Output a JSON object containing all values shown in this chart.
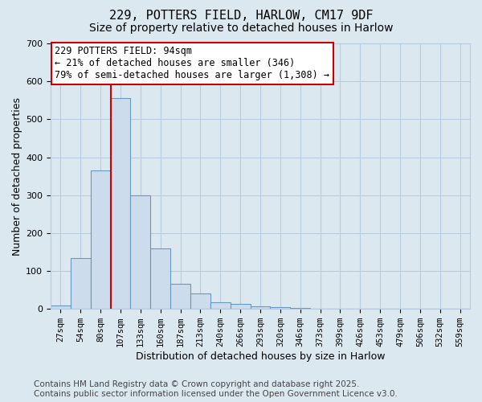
{
  "title": "229, POTTERS FIELD, HARLOW, CM17 9DF",
  "subtitle": "Size of property relative to detached houses in Harlow",
  "xlabel": "Distribution of detached houses by size in Harlow",
  "ylabel": "Number of detached properties",
  "bin_labels": [
    "27sqm",
    "54sqm",
    "80sqm",
    "107sqm",
    "133sqm",
    "160sqm",
    "187sqm",
    "213sqm",
    "240sqm",
    "266sqm",
    "293sqm",
    "320sqm",
    "346sqm",
    "373sqm",
    "399sqm",
    "426sqm",
    "453sqm",
    "479sqm",
    "506sqm",
    "532sqm",
    "559sqm"
  ],
  "bar_values": [
    8,
    135,
    365,
    555,
    300,
    160,
    67,
    40,
    18,
    14,
    7,
    5,
    2,
    1,
    0,
    0,
    0,
    0,
    0,
    0,
    0
  ],
  "bar_color": "#ccdcec",
  "bar_edge_color": "#6699bb",
  "property_line_x": 2.5,
  "property_line_color": "#cc0000",
  "annotation_text": "229 POTTERS FIELD: 94sqm\n← 21% of detached houses are smaller (346)\n79% of semi-detached houses are larger (1,308) →",
  "annotation_box_color": "#ffffff",
  "annotation_box_edge_color": "#cc0000",
  "ylim": [
    0,
    700
  ],
  "yticks": [
    0,
    100,
    200,
    300,
    400,
    500,
    600,
    700
  ],
  "grid_color": "#b8cce0",
  "background_color": "#dce8f0",
  "plot_background_color": "#dce8f0",
  "footnote": "Contains HM Land Registry data © Crown copyright and database right 2025.\nContains public sector information licensed under the Open Government Licence v3.0.",
  "title_fontsize": 11,
  "subtitle_fontsize": 10,
  "axis_label_fontsize": 9,
  "tick_fontsize": 7.5,
  "annotation_fontsize": 8.5,
  "footnote_fontsize": 7.5
}
